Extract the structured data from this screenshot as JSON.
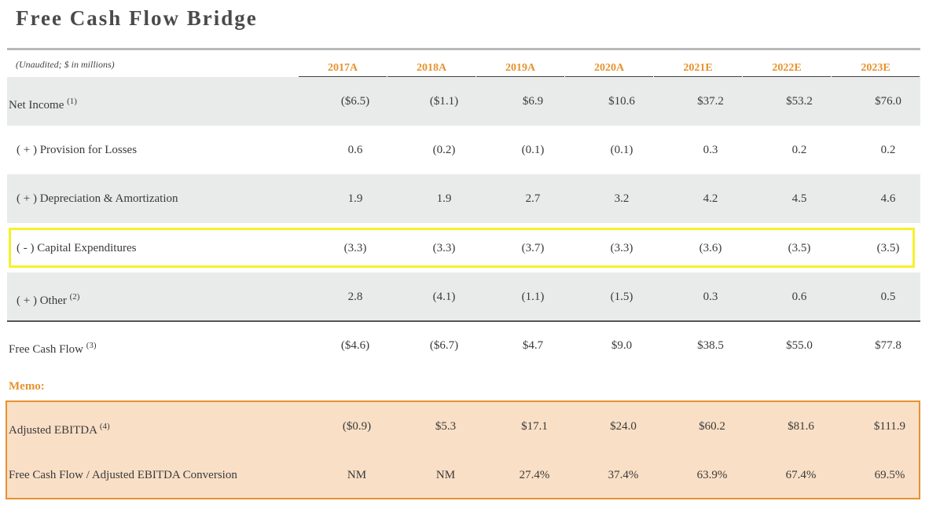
{
  "title": "Free Cash Flow Bridge",
  "subtitle": "(Unaudited; $ in millions)",
  "columns": [
    "2017A",
    "2018A",
    "2019A",
    "2020A",
    "2021E",
    "2022E",
    "2023E"
  ],
  "rows": [
    {
      "label": "Net Income",
      "footnote": "(1)",
      "values": [
        "($6.5)",
        "($1.1)",
        "$6.9",
        "$10.6",
        "$37.2",
        "$53.2",
        "$76.0"
      ]
    },
    {
      "label": "( + ) Provision for Losses",
      "footnote": "",
      "values": [
        "0.6",
        "(0.2)",
        "(0.1)",
        "(0.1)",
        "0.3",
        "0.2",
        "0.2"
      ]
    },
    {
      "label": "( + ) Depreciation & Amortization",
      "footnote": "",
      "values": [
        "1.9",
        "1.9",
        "2.7",
        "3.2",
        "4.2",
        "4.5",
        "4.6"
      ]
    },
    {
      "label": "( - ) Capital Expenditures",
      "footnote": "",
      "values": [
        "(3.3)",
        "(3.3)",
        "(3.7)",
        "(3.3)",
        "(3.6)",
        "(3.5)",
        "(3.5)"
      ]
    },
    {
      "label": "( + ) Other",
      "footnote": "(2)",
      "values": [
        "2.8",
        "(4.1)",
        "(1.1)",
        "(1.5)",
        "0.3",
        "0.6",
        "0.5"
      ]
    },
    {
      "label": "Free Cash Flow",
      "footnote": "(3)",
      "values": [
        "($4.6)",
        "($6.7)",
        "$4.7",
        "$9.0",
        "$38.5",
        "$55.0",
        "$77.8"
      ]
    }
  ],
  "memo": {
    "label": "Memo:",
    "rows": [
      {
        "label": "Adjusted EBITDA",
        "footnote": "(4)",
        "values": [
          "($0.9)",
          "$5.3",
          "$17.1",
          "$24.0",
          "$60.2",
          "$81.6",
          "$111.9"
        ]
      },
      {
        "label": "Free Cash Flow / Adjusted EBITDA Conversion",
        "footnote": "",
        "values": [
          "NM",
          "NM",
          "27.4%",
          "37.4%",
          "63.9%",
          "67.4%",
          "69.5%"
        ]
      }
    ]
  },
  "colors": {
    "accent": "#e6922e",
    "highlight": "#f4f22a",
    "memo_fill": "#f9dfc6",
    "row_shade": "#e9eaea"
  }
}
